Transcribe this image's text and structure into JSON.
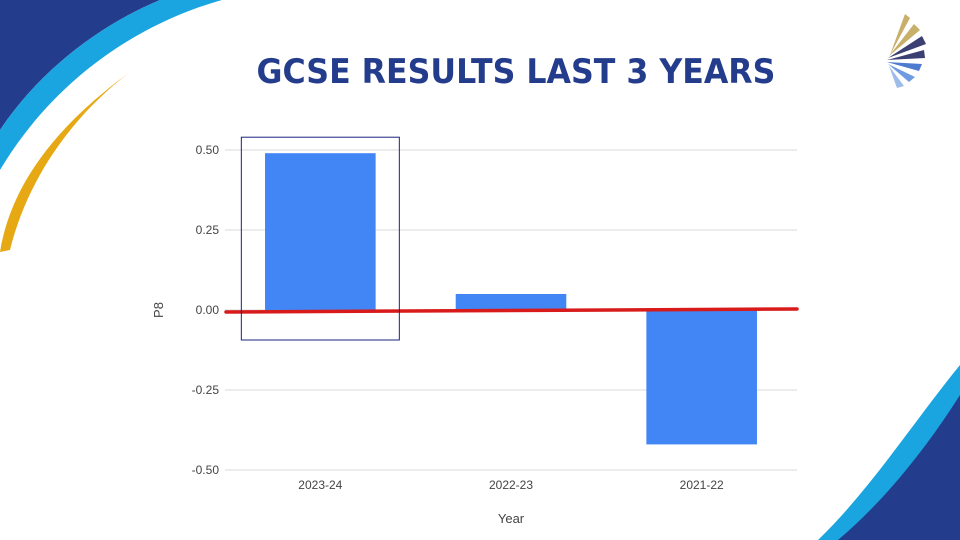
{
  "title": "GCSE RESULTS LAST 3 YEARS",
  "colors": {
    "bar": "#4285f4",
    "zero_line": "#d81a1a",
    "highlight_box": "#1a237e",
    "grid": "#d9d9d9",
    "title": "#243c8c"
  },
  "chart_data": {
    "type": "bar",
    "categories": [
      "2023-24",
      "2022-23",
      "2021-22"
    ],
    "values": [
      0.49,
      0.05,
      -0.42
    ],
    "xlabel": "Year",
    "ylabel": "P8",
    "ylim": [
      -0.5,
      0.5
    ],
    "yticks": [
      "0.50",
      "0.25",
      "0.00",
      "-0.25",
      "-0.50"
    ],
    "ytick_values": [
      0.5,
      0.25,
      0.0,
      -0.25,
      -0.5
    ],
    "grid": true,
    "highlighted_category": "2023-24",
    "reference_line": 0
  }
}
